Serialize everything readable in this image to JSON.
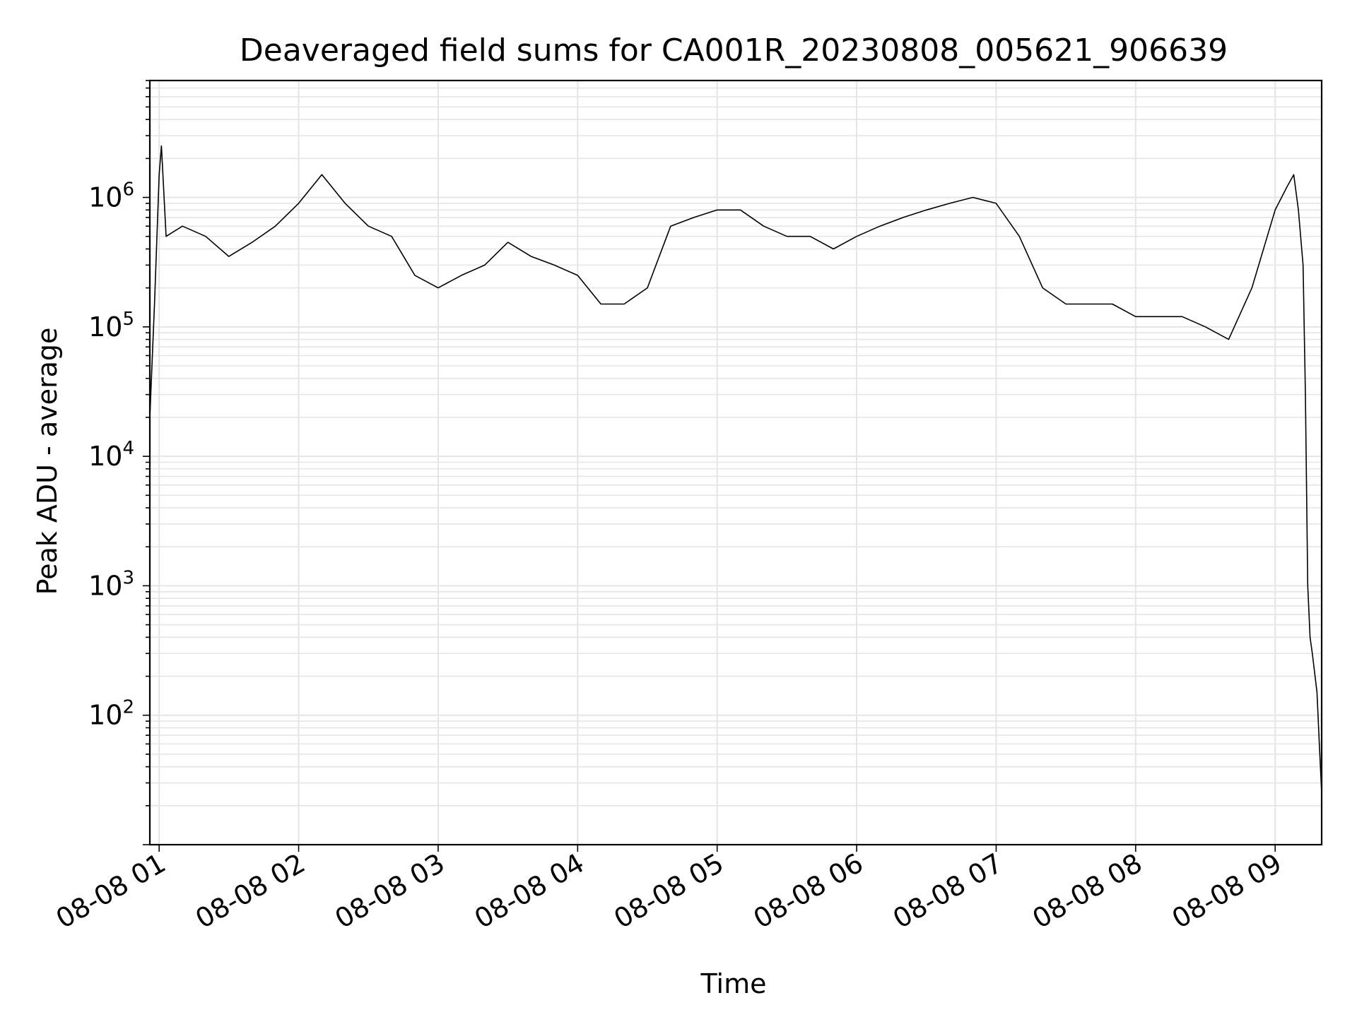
{
  "chart_data": {
    "type": "line",
    "title": "Deaveraged field sums for CA001R_20230808_005621_906639",
    "xlabel": "Time",
    "ylabel": "Peak ADU - average",
    "yscale": "log",
    "grid": true,
    "legend": "none",
    "x_ticks": [
      "08-08 01",
      "08-08 02",
      "08-08 03",
      "08-08 04",
      "08-08 05",
      "08-08 06",
      "08-08 07",
      "08-08 08",
      "08-08 09"
    ],
    "xlim": [
      "2023-08-08 00:56",
      "2023-08-08 09:20"
    ],
    "ylim": [
      10,
      8000000
    ],
    "y_ticks": [
      {
        "base": "10",
        "exp": "2",
        "value": 100
      },
      {
        "base": "10",
        "exp": "3",
        "value": 1000
      },
      {
        "base": "10",
        "exp": "4",
        "value": 10000
      },
      {
        "base": "10",
        "exp": "5",
        "value": 100000
      },
      {
        "base": "10",
        "exp": "6",
        "value": 1000000
      }
    ],
    "line_color": "#000000",
    "grid_color": "#e5e5e5",
    "series": [
      {
        "x": [
          "2023-08-08 00:56",
          "2023-08-08 00:58",
          "2023-08-08 01:00",
          "2023-08-08 01:01",
          "2023-08-08 01:03",
          "2023-08-08 01:10",
          "2023-08-08 01:20",
          "2023-08-08 01:30",
          "2023-08-08 01:40",
          "2023-08-08 01:50",
          "2023-08-08 02:00",
          "2023-08-08 02:10",
          "2023-08-08 02:20",
          "2023-08-08 02:30",
          "2023-08-08 02:40",
          "2023-08-08 02:50",
          "2023-08-08 03:00",
          "2023-08-08 03:10",
          "2023-08-08 03:20",
          "2023-08-08 03:30",
          "2023-08-08 03:40",
          "2023-08-08 03:50",
          "2023-08-08 04:00",
          "2023-08-08 04:10",
          "2023-08-08 04:20",
          "2023-08-08 04:30",
          "2023-08-08 04:40",
          "2023-08-08 04:50",
          "2023-08-08 05:00",
          "2023-08-08 05:10",
          "2023-08-08 05:20",
          "2023-08-08 05:30",
          "2023-08-08 05:40",
          "2023-08-08 05:50",
          "2023-08-08 06:00",
          "2023-08-08 06:10",
          "2023-08-08 06:20",
          "2023-08-08 06:30",
          "2023-08-08 06:40",
          "2023-08-08 06:50",
          "2023-08-08 07:00",
          "2023-08-08 07:10",
          "2023-08-08 07:20",
          "2023-08-08 07:30",
          "2023-08-08 07:40",
          "2023-08-08 07:50",
          "2023-08-08 08:00",
          "2023-08-08 08:10",
          "2023-08-08 08:20",
          "2023-08-08 08:30",
          "2023-08-08 08:40",
          "2023-08-08 08:50",
          "2023-08-08 09:00",
          "2023-08-08 09:05",
          "2023-08-08 09:08",
          "2023-08-08 09:10",
          "2023-08-08 09:12",
          "2023-08-08 09:13",
          "2023-08-08 09:14",
          "2023-08-08 09:15",
          "2023-08-08 09:16",
          "2023-08-08 09:18",
          "2023-08-08 09:19",
          "2023-08-08 09:20"
        ],
        "y": [
          20000,
          150000,
          1500000,
          2500000,
          500000,
          600000,
          500000,
          350000,
          450000,
          600000,
          900000,
          1500000,
          900000,
          600000,
          500000,
          250000,
          200000,
          250000,
          300000,
          450000,
          350000,
          300000,
          250000,
          150000,
          150000,
          200000,
          600000,
          700000,
          800000,
          800000,
          600000,
          500000,
          500000,
          400000,
          500000,
          600000,
          700000,
          800000,
          900000,
          1000000,
          900000,
          500000,
          200000,
          150000,
          150000,
          150000,
          120000,
          120000,
          120000,
          100000,
          80000,
          200000,
          800000,
          1200000,
          1500000,
          800000,
          300000,
          30000,
          1000,
          400,
          300,
          150,
          60,
          25
        ]
      }
    ]
  }
}
